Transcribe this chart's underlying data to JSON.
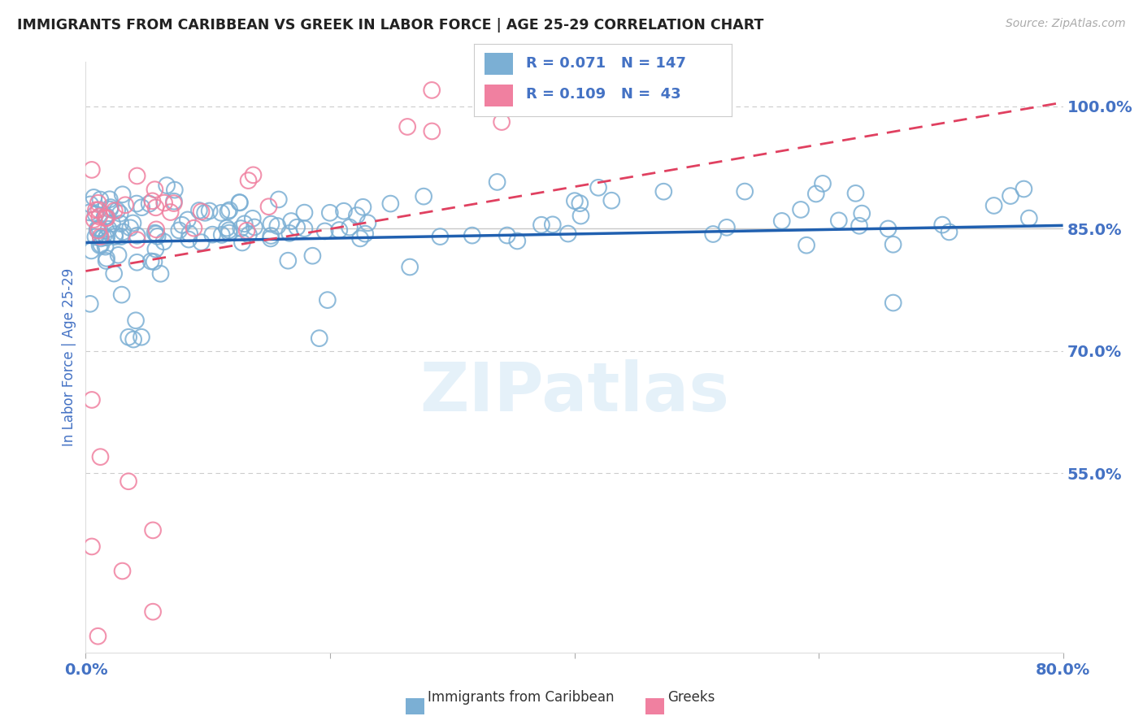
{
  "title": "IMMIGRANTS FROM CARIBBEAN VS GREEK IN LABOR FORCE | AGE 25-29 CORRELATION CHART",
  "source": "Source: ZipAtlas.com",
  "ylabel": "In Labor Force | Age 25-29",
  "x_min": 0.0,
  "x_max": 0.8,
  "y_min": 0.33,
  "y_max": 1.055,
  "y_ticks_right": [
    0.55,
    0.7,
    0.85,
    1.0
  ],
  "y_tick_labels_right": [
    "55.0%",
    "70.0%",
    "85.0%",
    "100.0%"
  ],
  "caribbean_color": "#7bafd4",
  "greek_color": "#f080a0",
  "trend_caribbean_color": "#2060b0",
  "trend_greek_color": "#e04060",
  "R_caribbean": 0.071,
  "N_caribbean": 147,
  "R_greek": 0.109,
  "N_greek": 43,
  "legend_caribbean": "Immigrants from Caribbean",
  "legend_greek": "Greeks",
  "watermark": "ZIPatlas",
  "background_color": "#ffffff",
  "title_color": "#222222",
  "axis_label_color": "#4472c4",
  "tick_label_color": "#4472c4",
  "grid_color_solid": "#c8c8c8",
  "grid_color_dash": "#cccccc",
  "legend_color": "#4472c4"
}
